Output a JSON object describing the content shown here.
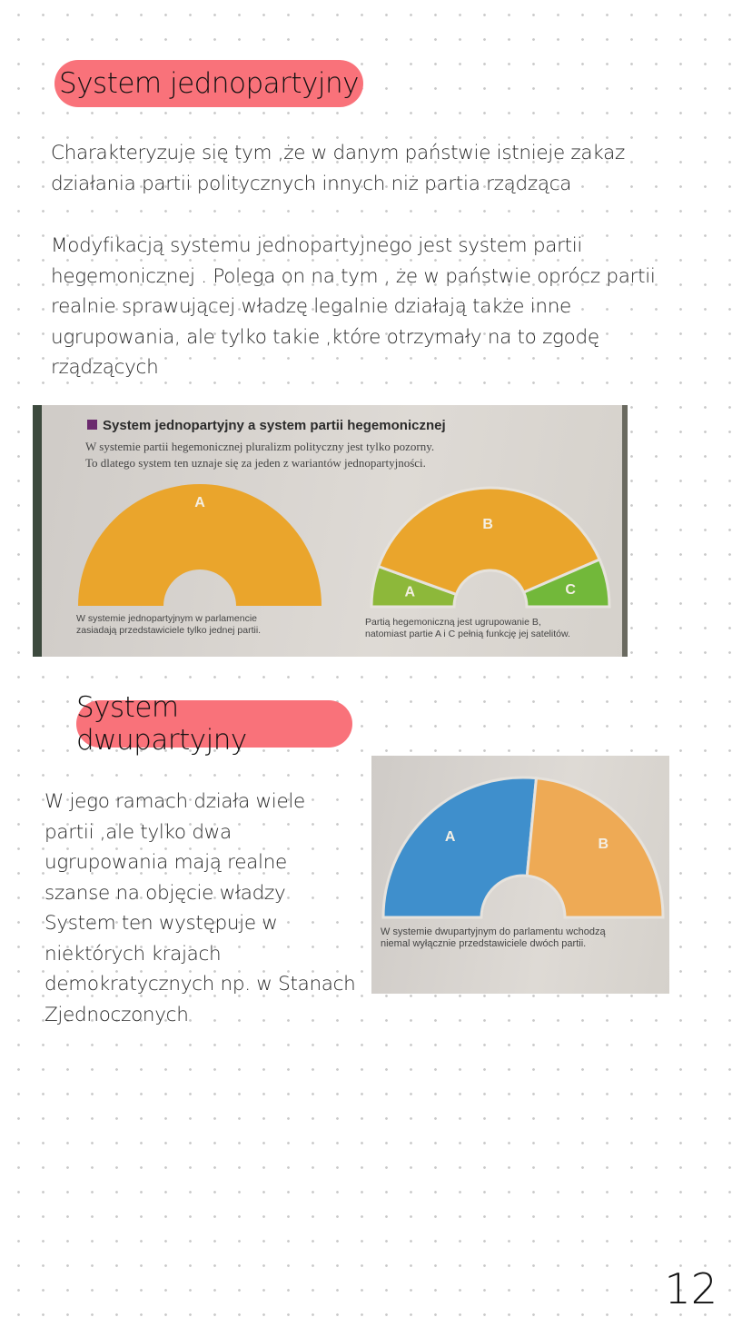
{
  "section1": {
    "heading": "System jednopartyjny",
    "paragraph1": [
      "Charakteryzuje się tym ,że w danym państwie istnieje zakaz",
      "działania partii politycznych innych niż partia rządząca"
    ],
    "paragraph2": [
      "Modyfikacją systemu jednopartyjnego jest system partii",
      "hegemonicznej . Polega on na tym , że w państwie oprócz partii",
      "realnie sprawującej władzę legalnie działają także inne",
      "ugrupowania, ale tylko takie ,które otrzymały na to zgodę",
      "rządzących"
    ]
  },
  "photo1": {
    "title": "System jednopartyjny a system partii hegemonicznej",
    "lines": [
      "W systemie partii hegemonicznej pluralizm polityczny jest tylko pozorny.",
      "To dlatego system ten uznaje się za jeden z wariantów jednopartyjności."
    ],
    "left_caption": [
      "W systemie jednopartyjnym w parlamencie",
      "zasiadają przedstawiciele tylko jednej partii."
    ],
    "right_caption": [
      "Partią hegemoniczną jest ugrupowanie B,",
      "natomiast partie A i C pełnią funkcję jej satelitów."
    ],
    "left_chart": [
      {
        "label": "A",
        "share": 1.0,
        "color": "#eaa52c"
      }
    ],
    "right_chart": [
      {
        "label": "A",
        "share": 0.11,
        "color": "#8db83a"
      },
      {
        "label": "B",
        "share": 0.76,
        "color": "#eaa52c"
      },
      {
        "label": "C",
        "share": 0.13,
        "color": "#72b83a"
      }
    ]
  },
  "section2": {
    "heading": "System dwupartyjny",
    "paragraph": [
      "W jego ramach działa wiele",
      "partii ,ale tylko dwa",
      "ugrupowania mają realne",
      "szanse na objęcie władzy",
      "System ten występuje w",
      "niektórych krajach",
      "demokratycznych np. w Stanach",
      "Zjednoczonych"
    ]
  },
  "photo2": {
    "caption": [
      "W systemie dwupartyjnym do parlamentu wchodzą",
      "niemal wyłącznie przedstawiciele dwóch partii."
    ],
    "chart": [
      {
        "label": "A",
        "share": 0.53,
        "color": "#3f8fcc"
      },
      {
        "label": "B",
        "share": 0.47,
        "color": "#eeaa55"
      }
    ]
  },
  "page_number": "12",
  "colors": {
    "heading_pill": "#f9727a"
  }
}
